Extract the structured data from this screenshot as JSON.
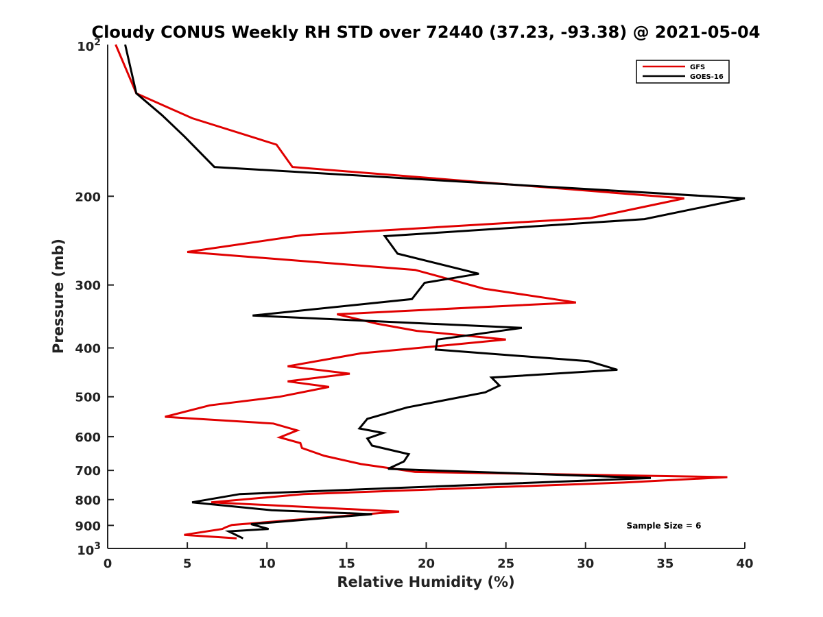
{
  "chart_data": {
    "type": "line",
    "title": "Cloudy CONUS Weekly RH STD over 72440 (37.23, -93.38) @ 2021-05-04",
    "xlabel": "Relative Humidity (%)",
    "ylabel": "Pressure (mb)",
    "xlim": [
      0,
      40
    ],
    "ylim": [
      100,
      1000
    ],
    "y_scale": "log",
    "y_reversed": true,
    "x_ticks": [
      0,
      5,
      10,
      15,
      20,
      25,
      30,
      35,
      40
    ],
    "x_tick_labels": [
      "0",
      "5",
      "10",
      "15",
      "20",
      "25",
      "30",
      "35",
      "40"
    ],
    "y_ticks": [
      200,
      300,
      400,
      500,
      600,
      700,
      800,
      900
    ],
    "y_tick_labels": [
      "200",
      "300",
      "400",
      "500",
      "600",
      "700",
      "800",
      "900"
    ],
    "y_end_labels": {
      "top_base": "10",
      "top_exp": "2",
      "bottom_base": "10",
      "bottom_exp": "3"
    },
    "legend_position": "top-right",
    "grid": false,
    "annotation": "Sample Size = 6",
    "series": [
      {
        "name": "GFS",
        "color": "#e00000",
        "points": [
          [
            0.5,
            100
          ],
          [
            1.8,
            125
          ],
          [
            5.3,
            140
          ],
          [
            10.6,
            158
          ],
          [
            11.6,
            175
          ],
          [
            36.2,
            202
          ],
          [
            30.3,
            221
          ],
          [
            12.2,
            239
          ],
          [
            5.0,
            258
          ],
          [
            19.3,
            280
          ],
          [
            23.6,
            305
          ],
          [
            29.4,
            325
          ],
          [
            14.4,
            343
          ],
          [
            16.9,
            358
          ],
          [
            19.4,
            370
          ],
          [
            25.0,
            385
          ],
          [
            20.6,
            397
          ],
          [
            15.9,
            410
          ],
          [
            11.3,
            435
          ],
          [
            15.2,
            450
          ],
          [
            11.3,
            466
          ],
          [
            13.9,
            478
          ],
          [
            10.8,
            500
          ],
          [
            6.4,
            520
          ],
          [
            3.6,
            548
          ],
          [
            10.4,
            565
          ],
          [
            11.9,
            583
          ],
          [
            10.8,
            602
          ],
          [
            12.1,
            618
          ],
          [
            12.2,
            632
          ],
          [
            13.6,
            655
          ],
          [
            15.9,
            680
          ],
          [
            18.0,
            695
          ],
          [
            19.3,
            705
          ],
          [
            38.9,
            722
          ],
          [
            32.4,
            740
          ],
          [
            12.3,
            780
          ],
          [
            6.5,
            810
          ],
          [
            18.3,
            845
          ],
          [
            7.8,
            898
          ],
          [
            7.4,
            908
          ],
          [
            7.2,
            915
          ],
          [
            4.8,
            940
          ],
          [
            8.1,
            955
          ]
        ]
      },
      {
        "name": "GOES-16",
        "color": "#000000",
        "points": [
          [
            1.1,
            100
          ],
          [
            1.8,
            125
          ],
          [
            3.4,
            138
          ],
          [
            4.8,
            152
          ],
          [
            6.7,
            175
          ],
          [
            40.0,
            202
          ],
          [
            33.7,
            222
          ],
          [
            17.4,
            240
          ],
          [
            18.2,
            260
          ],
          [
            23.3,
            285
          ],
          [
            19.9,
            297
          ],
          [
            19.1,
            320
          ],
          [
            9.1,
            345
          ],
          [
            26.0,
            365
          ],
          [
            20.7,
            385
          ],
          [
            20.6,
            403
          ],
          [
            30.2,
            425
          ],
          [
            32.0,
            442
          ],
          [
            24.1,
            458
          ],
          [
            24.6,
            475
          ],
          [
            23.7,
            490
          ],
          [
            18.8,
            525
          ],
          [
            16.3,
            553
          ],
          [
            15.8,
            578
          ],
          [
            17.3,
            590
          ],
          [
            16.3,
            605
          ],
          [
            16.6,
            625
          ],
          [
            18.9,
            650
          ],
          [
            18.6,
            672
          ],
          [
            17.6,
            695
          ],
          [
            34.1,
            725
          ],
          [
            8.3,
            780
          ],
          [
            5.3,
            810
          ],
          [
            10.3,
            840
          ],
          [
            16.6,
            855
          ],
          [
            9.0,
            895
          ],
          [
            10.1,
            915
          ],
          [
            7.6,
            925
          ],
          [
            8.5,
            955
          ]
        ]
      }
    ]
  }
}
